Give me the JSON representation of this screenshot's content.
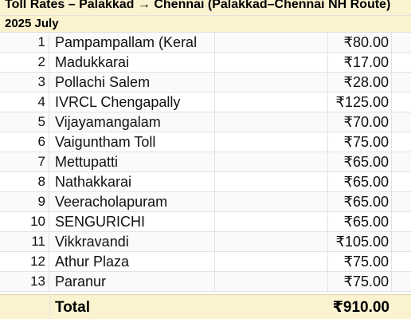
{
  "sheet": {
    "title": "Toll Rates – Palakkad → Chennai (Palakkad–Chennai NH Route)",
    "subtitle": "2025 July",
    "rows": [
      {
        "num": "1",
        "name": "Pampampallam (Keral",
        "rate": "₹80.00"
      },
      {
        "num": "2",
        "name": "Madukkarai",
        "rate": "₹17.00"
      },
      {
        "num": "3",
        "name": "Pollachi Salem",
        "rate": "₹28.00"
      },
      {
        "num": "4",
        "name": "IVRCL Chengapally",
        "rate": "₹125.00"
      },
      {
        "num": "5",
        "name": "Vijayamangalam",
        "rate": "₹70.00"
      },
      {
        "num": "6",
        "name": "Vaiguntham Toll",
        "rate": "₹75.00"
      },
      {
        "num": "7",
        "name": "Mettupatti",
        "rate": "₹65.00"
      },
      {
        "num": "8",
        "name": "Nathakkarai",
        "rate": "₹65.00"
      },
      {
        "num": "9",
        "name": "Veeracholapuram",
        "rate": "₹65.00"
      },
      {
        "num": "10",
        "name": "SENGURICHI",
        "rate": "₹65.00"
      },
      {
        "num": "11",
        "name": "Vikkravandi",
        "rate": "₹105.00"
      },
      {
        "num": "12",
        "name": "Athur Plaza",
        "rate": "₹75.00"
      },
      {
        "num": "13",
        "name": "Paranur",
        "rate": "₹75.00"
      }
    ],
    "total_label": "Total",
    "total_value": "₹910.00"
  }
}
